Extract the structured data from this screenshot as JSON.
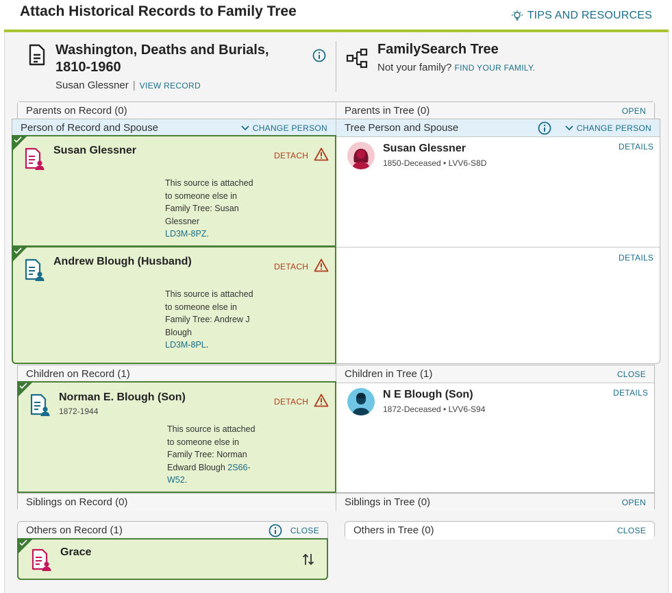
{
  "header": {
    "title": "Attach Historical Records to Family Tree",
    "tips_label": "TIPS AND RESOURCES"
  },
  "record": {
    "collection_line1": "Washington, Deaths and Burials,",
    "collection_line2": "1810-1960",
    "person": "Susan Glessner",
    "view_record": "VIEW RECORD"
  },
  "tree": {
    "title": "FamilySearch Tree",
    "not_family": "Not your family?",
    "find_family": "FIND YOUR FAMILY."
  },
  "parents": {
    "record_header": "Parents on Record (0)",
    "tree_header": "Parents in Tree (0)",
    "toggle": "OPEN"
  },
  "spouse_section": {
    "record_header": "Person of Record and Spouse",
    "tree_header": "Tree Person and Spouse",
    "change_person": "CHANGE PERSON"
  },
  "record_people": [
    {
      "name": "Susan Glessner",
      "dates": "",
      "detach": "DETACH",
      "note": "This source is attached to someone else in Family Tree: Susan Glessner",
      "pid": "LD3M-8PZ",
      "icon_color": "#c2185b"
    },
    {
      "name": "Andrew Blough (Husband)",
      "dates": "",
      "detach": "DETACH",
      "note": "This source is attached to someone else in Family Tree: Andrew J Blough",
      "pid": "LD3M-8PL",
      "icon_color": "#1b6e8a"
    }
  ],
  "tree_people": [
    {
      "name": "Susan Glessner",
      "meta": "1850-Deceased • LVV6-S8D",
      "details": "DETAILS"
    },
    {
      "details": "DETAILS"
    }
  ],
  "children": {
    "record_header": "Children on Record (1)",
    "tree_header": "Children in Tree (1)",
    "toggle": "CLOSE",
    "record_person": {
      "name": "Norman E. Blough (Son)",
      "dates": "1872-1944",
      "detach": "DETACH",
      "note": "This source is attached to someone else in Family Tree: Norman Edward Blough",
      "pid": "2S66-W52"
    },
    "tree_person": {
      "name": "N E Blough (Son)",
      "meta": "1872-Deceased • LVV6-S94",
      "details": "DETAILS"
    }
  },
  "siblings": {
    "record_header": "Siblings on Record (0)",
    "tree_header": "Siblings in Tree (0)",
    "toggle": "OPEN"
  },
  "others": {
    "record_header": "Others on Record (1)",
    "record_toggle": "CLOSE",
    "tree_header": "Others in Tree (0)",
    "tree_toggle": "CLOSE",
    "record_person": {
      "name": "Grace"
    }
  },
  "colors": {
    "accent_link": "#1b6e8a",
    "attached_green": "#e6f1cf",
    "attached_border": "#4e7f3b",
    "warning": "#b03c1c",
    "header_bar": "#a9c532"
  }
}
